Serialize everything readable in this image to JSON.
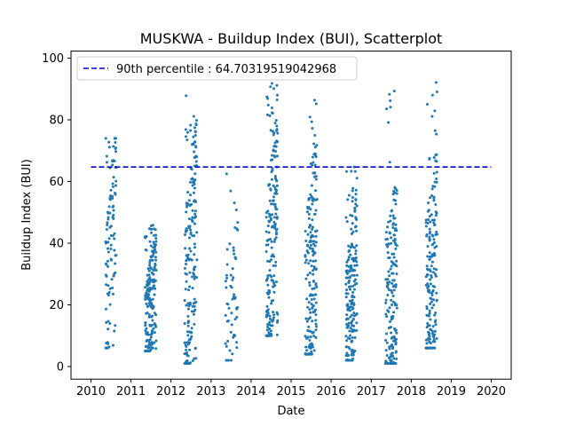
{
  "chart_data": {
    "type": "scatter",
    "title": "MUSKWA - Buildup Index (BUI), Scatterplot",
    "xlabel": "Date",
    "ylabel": "Buildup Index (BUI)",
    "xlim": [
      "2010",
      "2020"
    ],
    "ylim": [
      0,
      100
    ],
    "x_ticks": [
      "2010",
      "2011",
      "2012",
      "2013",
      "2014",
      "2015",
      "2016",
      "2017",
      "2018",
      "2019",
      "2020"
    ],
    "y_ticks": [
      "0",
      "20",
      "40",
      "60",
      "80",
      "100"
    ],
    "reference_line": {
      "label": "90th percentile : 64.70319519042968",
      "value": 64.70319519042968,
      "color": "#0000cc",
      "style": "dashed"
    },
    "legend_position": "top-left",
    "point_color": "#1f77b4",
    "seasons": [
      {
        "year": 2010,
        "start": "2010-05-15",
        "end": "2010-08-20",
        "min": 6,
        "max": 74,
        "peak": 58,
        "n": 110
      },
      {
        "year": 2011,
        "start": "2011-05-10",
        "end": "2011-08-20",
        "min": 5,
        "max": 47,
        "peak": 30,
        "n": 190
      },
      {
        "year": 2012,
        "start": "2012-05-05",
        "end": "2012-08-25",
        "min": 1,
        "max": 88,
        "peak": 55,
        "n": 200
      },
      {
        "year": 2013,
        "start": "2013-05-10",
        "end": "2013-09-01",
        "min": 2,
        "max": 68,
        "peak": 35,
        "n": 60
      },
      {
        "year": 2014,
        "start": "2014-05-20",
        "end": "2014-09-01",
        "min": 10,
        "max": 93,
        "peak": 60,
        "n": 200
      },
      {
        "year": 2015,
        "start": "2015-05-10",
        "end": "2015-08-25",
        "min": 4,
        "max": 88,
        "peak": 45,
        "n": 200
      },
      {
        "year": 2016,
        "start": "2016-05-15",
        "end": "2016-08-25",
        "min": 2,
        "max": 65,
        "peak": 35,
        "n": 210
      },
      {
        "year": 2017,
        "start": "2017-05-10",
        "end": "2017-08-25",
        "min": 1,
        "max": 91,
        "peak": 30,
        "n": 200
      },
      {
        "year": 2018,
        "start": "2018-05-15",
        "end": "2018-08-25",
        "min": 6,
        "max": 97,
        "peak": 40,
        "n": 200
      }
    ]
  }
}
